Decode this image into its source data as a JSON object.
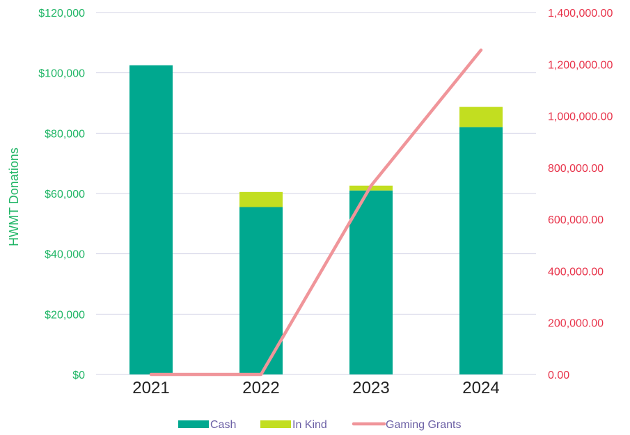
{
  "chart_data": {
    "type": "bar",
    "categories": [
      "2021",
      "2022",
      "2023",
      "2024"
    ],
    "ylabel": "HWMT Donations",
    "ylim": [
      0,
      120000
    ],
    "y2lim": [
      0,
      1400000
    ],
    "y_ticks": [
      "$0",
      "$20,000",
      "$40,000",
      "$60,000",
      "$80,000",
      "$100,000",
      "$120,000"
    ],
    "y_tick_values": [
      0,
      20000,
      40000,
      60000,
      80000,
      100000,
      120000
    ],
    "y2_ticks": [
      "0.00",
      "200,000.00",
      "400,000.00",
      "600,000.00",
      "800,000.00",
      "1,000,000.00",
      "1,200,000.00",
      "1,400,000.00"
    ],
    "y2_tick_values": [
      0,
      200000,
      400000,
      600000,
      800000,
      1000000,
      1200000,
      1400000
    ],
    "stacked": true,
    "grid": true,
    "legend_position": "bottom",
    "series": [
      {
        "name": "Cash",
        "type": "bar",
        "axis": "left",
        "values": [
          102500,
          55500,
          61000,
          82000
        ],
        "color": "#00A88F"
      },
      {
        "name": "In Kind",
        "type": "bar",
        "axis": "left",
        "values": [
          0,
          5000,
          1600,
          6700
        ],
        "color": "#C2DE20"
      },
      {
        "name": "Gaming Grants",
        "type": "line",
        "axis": "right",
        "values": [
          0,
          0,
          730000,
          1255000
        ],
        "color": "#F0959A"
      }
    ],
    "colors": {
      "left_axis": "#1FB565",
      "right_axis": "#E8334A",
      "legend_text": "#6B5FA5",
      "grid": "#D3D3E6",
      "category_text": "#222222"
    }
  }
}
